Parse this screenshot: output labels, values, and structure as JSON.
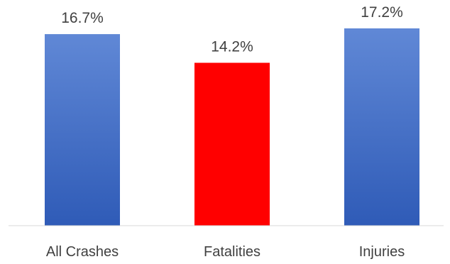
{
  "chart_data": {
    "type": "bar",
    "categories": [
      "All Crashes",
      "Fatalities",
      "Injuries"
    ],
    "values": [
      16.7,
      14.2,
      17.2
    ],
    "value_labels": [
      "16.7%",
      "14.2%",
      "17.2%"
    ],
    "colors": [
      "#4472C4",
      "#FF0000",
      "#4472C4"
    ],
    "axis_color": "#D9D9D9",
    "title": "",
    "xlabel": "",
    "ylabel": "",
    "ylim": [
      0,
      17.2
    ],
    "grid": false,
    "legend": "none"
  }
}
